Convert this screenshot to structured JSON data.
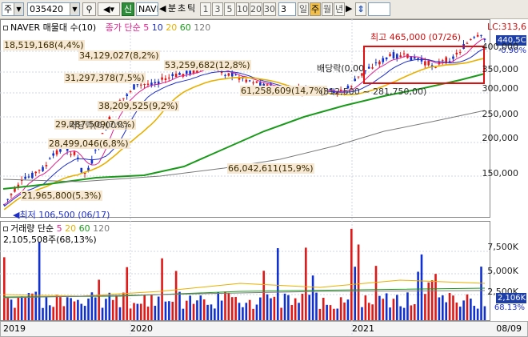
{
  "toolbar": {
    "market_label": "주",
    "code_value": "035420",
    "green_badge": "신",
    "name_value": "NAVE",
    "unit_label": "분",
    "tick_label": "초",
    "tick2_label": "틱",
    "periods": [
      "1",
      "3",
      "5",
      "10",
      "20",
      "30"
    ],
    "count_value": "3",
    "day_label": "일",
    "week_label": "주",
    "month_label": "월",
    "year_label": "년"
  },
  "price_panel": {
    "legend_title": "NAVER 매물대 수(10)",
    "legend_close": "종가 단순",
    "ma_periods": [
      "5",
      "10",
      "20",
      "60",
      "120"
    ],
    "ma_colors": [
      "#e0208f",
      "#1e2fc8",
      "#e8b000",
      "#1a9a1a",
      "#7a7a7a"
    ],
    "right_top": "LC:313,6",
    "last_price": "440,5C",
    "change": "-0.90%",
    "y_ticks": [
      "400,000",
      "350,000",
      "300,000",
      "250,000",
      "200,000",
      "150,000"
    ],
    "high_note": "최고 465,000 (07/26)",
    "low_note": "최저 106,500 (06/17)",
    "dividend_notes": [
      "배당락(0,00",
      "배당락(0,00%)"
    ],
    "volume_profile": [
      {
        "label": "18,519,168(4,4%)",
        "pct": 4.4
      },
      {
        "label": "34,129,027(8,2%)",
        "pct": 8.2
      },
      {
        "label": "53,259,682(12,8%)",
        "pct": 12.8
      },
      {
        "label": "31,297,378(7,5%)",
        "pct": 7.5
      },
      {
        "label": "61,258,609(14,7%)",
        "pct": 14.7
      },
      {
        "label": "38,209,525(9,2%)",
        "pct": 9.2
      },
      {
        "label": "29,287,509(7,0%)",
        "pct": 7.0
      },
      {
        "label": "28,499,046(6,8%)",
        "pct": 6.8
      },
      {
        "label": "66,042,611(15,9%)",
        "pct": 15.9
      },
      {
        "label": "21,965,800(5,3%)",
        "pct": 5.3
      }
    ],
    "range_note": "(312,500 ~ 281,750,00)"
  },
  "volume_panel": {
    "legend": "거래량 단순",
    "ma_periods": [
      "5",
      "20",
      "60",
      "120"
    ],
    "ma_colors": [
      "#e0208f",
      "#e8b000",
      "#1a9a1a",
      "#7a7a7a"
    ],
    "volume_text": "2,105,508주(68,13%)",
    "y_ticks": [
      "7,500K",
      "5,000K",
      "2,500K"
    ],
    "last_volume": "2,106K",
    "last_pct": "68.13%"
  },
  "x_axis": {
    "labels": [
      "2019",
      "2020",
      "2021",
      "08/09"
    ]
  }
}
